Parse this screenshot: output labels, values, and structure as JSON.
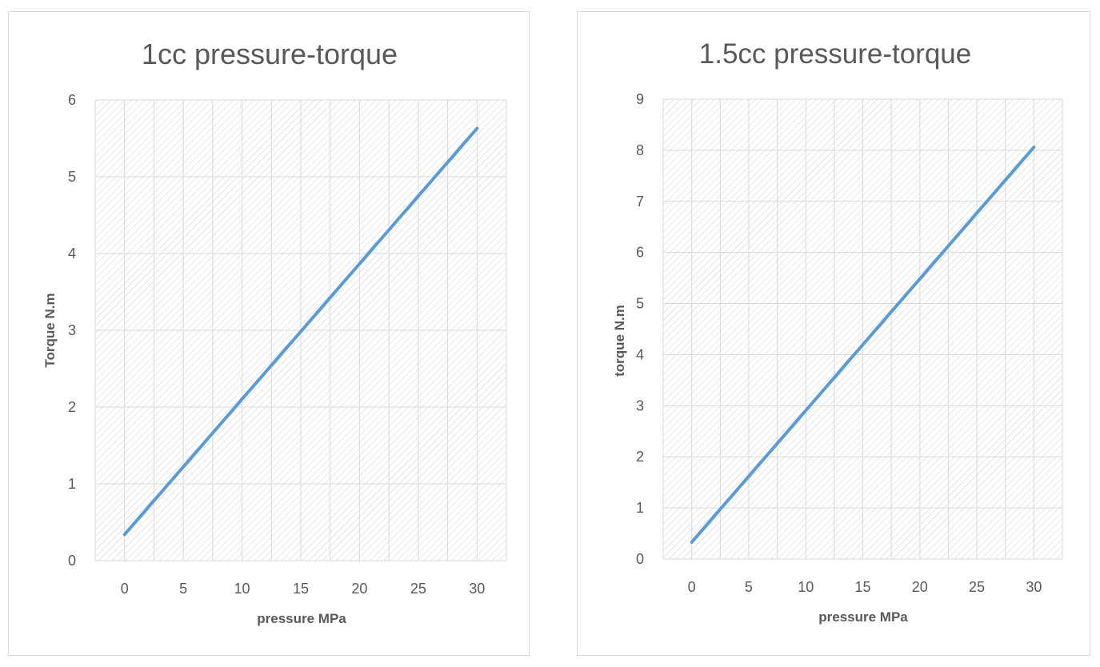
{
  "colors": {
    "series_line": "#5b9bd5",
    "gridline": "#d9d9d9",
    "hatch": "#d0d0d0",
    "text": "#595959"
  },
  "chart_data": [
    {
      "type": "line",
      "title": "1cc pressure-torque",
      "xlabel": "pressure MPa",
      "ylabel": "Torque N.m",
      "x_ticks": [
        "0",
        "5",
        "10",
        "15",
        "20",
        "25",
        "30"
      ],
      "y_ticks": [
        "0",
        "1",
        "2",
        "3",
        "4",
        "5",
        "6"
      ],
      "ylim": [
        0,
        6
      ],
      "grid": true,
      "legend": "none",
      "series": [
        {
          "x": [
            0,
            30
          ],
          "y": [
            0.34,
            5.63
          ]
        }
      ]
    },
    {
      "type": "line",
      "title": "1.5cc pressure-torque",
      "xlabel": "pressure MPa",
      "ylabel": "torque N.m",
      "x_ticks": [
        "0",
        "5",
        "10",
        "15",
        "20",
        "25",
        "30"
      ],
      "y_ticks": [
        "0",
        "1",
        "2",
        "3",
        "4",
        "5",
        "6",
        "7",
        "8",
        "9"
      ],
      "ylim": [
        0,
        9
      ],
      "grid": true,
      "legend": "none",
      "series": [
        {
          "x": [
            0,
            30
          ],
          "y": [
            0.33,
            8.06
          ]
        }
      ]
    }
  ]
}
